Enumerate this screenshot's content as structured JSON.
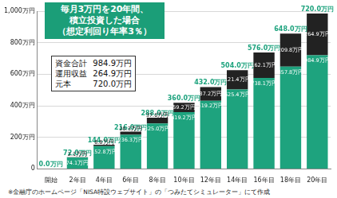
{
  "chart_data": {
    "type": "bar",
    "title": "毎月3万円を20年間、積立投資した場合",
    "subtitle": "（想定利回り年率3％）",
    "note": "※金融庁のホームページ「NISA特設ウェブサイト」の「つみたてシミュレーター」にて作成",
    "info_box": [
      {
        "label": "資金合計",
        "value": "984.9万円"
      },
      {
        "label": "運用収益",
        "value": "264.9万円"
      },
      {
        "label": "元本",
        "value": "720.0万円"
      }
    ],
    "categories": [
      "開始",
      "2年目",
      "4年目",
      "6年目",
      "8年目",
      "10年目",
      "12年目",
      "14年目",
      "16年目",
      "18年目",
      "20年目"
    ],
    "series": [
      {
        "name": "元本",
        "color": "#1ea37e",
        "values": [
          0,
          72,
          144,
          216,
          288,
          360,
          432,
          504,
          576,
          648,
          720
        ],
        "value_labels": [
          "0.0万円",
          "72.0万円",
          "144.0万円",
          "216.0万円",
          "288.0万円",
          "360.0万円",
          "432.0万円",
          "504.0万円",
          "576.0万円",
          "648.0万円",
          "720.0万円"
        ]
      },
      {
        "name": "運用収益",
        "color": "#222222",
        "values": [
          0,
          2.1,
          8.8,
          20.3,
          37.0,
          59.2,
          87.2,
          121.4,
          162.1,
          209.8,
          264.9
        ],
        "value_labels": [
          null,
          "2.1万円",
          "8.8万円",
          "20.3万円",
          "37.0万円",
          "59.2万円",
          "87.2万円",
          "121.4万円",
          "162.1万円",
          "209.8万円",
          "264.9万円"
        ]
      }
    ],
    "totals": {
      "values": [
        0,
        74.1,
        152.8,
        236.3,
        325.0,
        419.2,
        519.2,
        625.4,
        738.1,
        857.8,
        984.9
      ],
      "value_labels": [
        null,
        "74.1万円",
        "152.8万円",
        "236.3万円",
        "325.0万円",
        "419.2万円",
        "519.2万円",
        "625.4万円",
        "738.1万円",
        "857.8万円",
        "984.9万円"
      ]
    },
    "stacked": true,
    "data_labels": true,
    "grid": true,
    "ylim": [
      0,
      1000
    ],
    "yticks": [
      0,
      {
        "value": 200,
        "label": "200万円"
      },
      {
        "value": 400,
        "label": "400万円"
      },
      {
        "value": 600,
        "label": "600万円"
      },
      {
        "value": 800,
        "label": "800万円"
      },
      {
        "value": 1000,
        "label": "1,000万円"
      }
    ]
  }
}
